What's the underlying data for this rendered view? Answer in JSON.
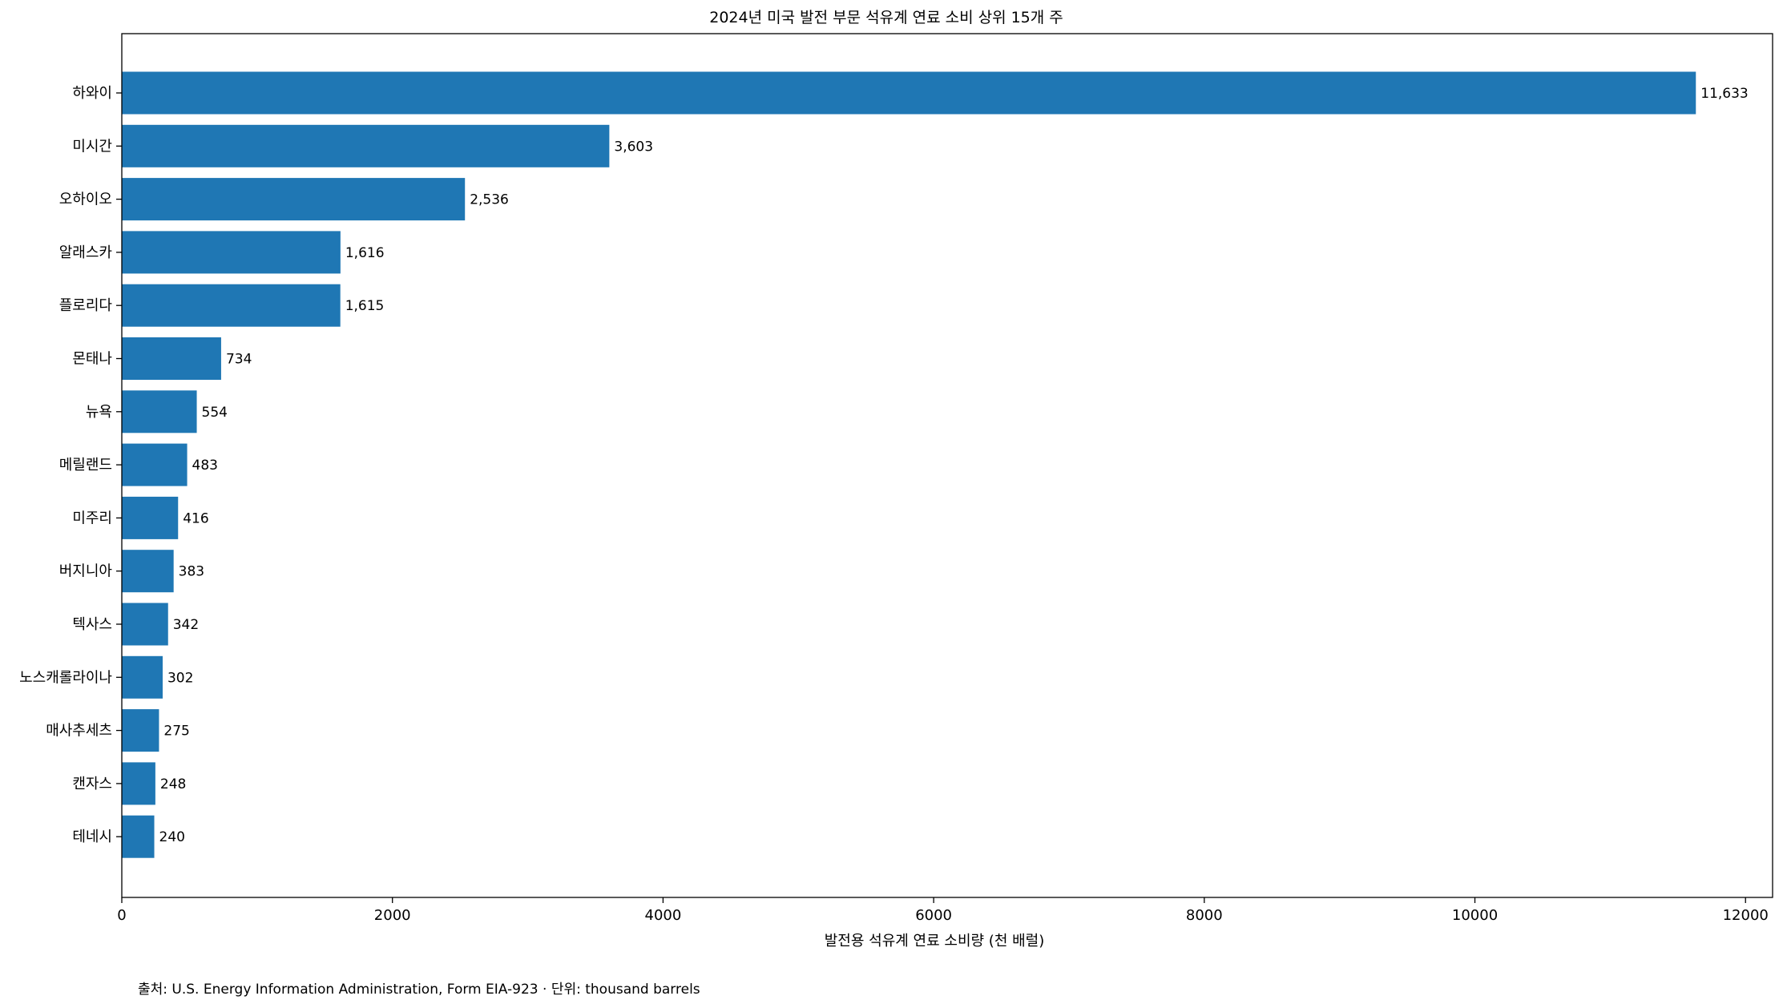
{
  "chart_data": {
    "type": "bar",
    "orientation": "horizontal",
    "title": "2024년 미국 발전 부문 석유계 연료 소비 상위 15개 주",
    "xlabel": "발전용 석유계 연료 소비량 (천 배럴)",
    "ylabel": "",
    "xlim": [
      0,
      12200
    ],
    "xticks": [
      0,
      2000,
      4000,
      6000,
      8000,
      10000,
      12000
    ],
    "xtick_labels": [
      "0",
      "2000",
      "4000",
      "6000",
      "8000",
      "10000",
      "12000"
    ],
    "grid": false,
    "bar_color": "#1f77b4",
    "categories": [
      "하와이",
      "미시간",
      "오하이오",
      "알래스카",
      "플로리다",
      "몬태나",
      "뉴욕",
      "메릴랜드",
      "미주리",
      "버지니아",
      "텍사스",
      "노스캐롤라이나",
      "매사추세츠",
      "캔자스",
      "테네시"
    ],
    "values": [
      11633,
      3603,
      2536,
      1616,
      1615,
      734,
      554,
      483,
      416,
      383,
      342,
      302,
      275,
      248,
      240
    ],
    "value_labels": [
      "11,633",
      "3,603",
      "2,536",
      "1,616",
      "1,615",
      "734",
      "554",
      "483",
      "416",
      "383",
      "342",
      "302",
      "275",
      "248",
      "240"
    ]
  },
  "footnote": "출처: U.S. Energy Information Administration, Form EIA-923 · 단위: thousand barrels"
}
